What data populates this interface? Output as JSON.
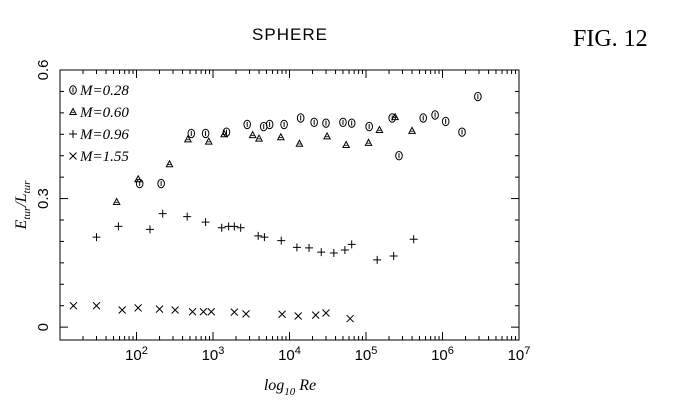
{
  "figure_label": "FIG. 12",
  "chart_data": {
    "type": "scatter",
    "title": "SPHERE",
    "xlabel": "log10 Re",
    "ylabel": "Etur/Ltur",
    "x_scale": "log",
    "xlim": [
      10,
      10000000
    ],
    "ylim": [
      -0.03,
      0.6
    ],
    "x_ticks": [
      {
        "value": 100,
        "base": "10",
        "exp": "2"
      },
      {
        "value": 1000,
        "base": "10",
        "exp": "3"
      },
      {
        "value": 10000,
        "base": "10",
        "exp": "4"
      },
      {
        "value": 100000,
        "base": "10",
        "exp": "5"
      },
      {
        "value": 1000000,
        "base": "10",
        "exp": "6"
      },
      {
        "value": 10000000,
        "base": "10",
        "exp": "7"
      }
    ],
    "y_ticks": [
      {
        "value": 0,
        "label": "0"
      },
      {
        "value": 0.3,
        "label": "0.3"
      },
      {
        "value": 0.6,
        "label": "0.6"
      }
    ],
    "grid": false,
    "legend_position": "top-left",
    "series": [
      {
        "name": "M=0.28",
        "marker": "circle",
        "points": [
          [
            110,
            0.335
          ],
          [
            210,
            0.335
          ],
          [
            520,
            0.452
          ],
          [
            800,
            0.452
          ],
          [
            1500,
            0.455
          ],
          [
            2800,
            0.473
          ],
          [
            4600,
            0.468
          ],
          [
            5500,
            0.473
          ],
          [
            8500,
            0.473
          ],
          [
            14000,
            0.488
          ],
          [
            21000,
            0.478
          ],
          [
            30000,
            0.476
          ],
          [
            50000,
            0.478
          ],
          [
            65000,
            0.476
          ],
          [
            110000,
            0.468
          ],
          [
            220000,
            0.488
          ],
          [
            270000,
            0.4
          ],
          [
            560000,
            0.488
          ],
          [
            800000,
            0.495
          ],
          [
            1100000,
            0.48
          ],
          [
            1800000,
            0.455
          ],
          [
            2900000,
            0.538
          ]
        ]
      },
      {
        "name": "M=0.60",
        "marker": "triangle",
        "points": [
          [
            55,
            0.292
          ],
          [
            105,
            0.345
          ],
          [
            270,
            0.38
          ],
          [
            470,
            0.438
          ],
          [
            880,
            0.433
          ],
          [
            1400,
            0.45
          ],
          [
            3300,
            0.448
          ],
          [
            4000,
            0.44
          ],
          [
            7700,
            0.443
          ],
          [
            13500,
            0.428
          ],
          [
            31000,
            0.445
          ],
          [
            55000,
            0.425
          ],
          [
            108000,
            0.43
          ],
          [
            150000,
            0.46
          ],
          [
            240000,
            0.49
          ],
          [
            400000,
            0.458
          ]
        ]
      },
      {
        "name": "M=0.96",
        "marker": "plus",
        "points": [
          [
            30,
            0.21
          ],
          [
            58,
            0.235
          ],
          [
            150,
            0.228
          ],
          [
            220,
            0.265
          ],
          [
            460,
            0.258
          ],
          [
            800,
            0.245
          ],
          [
            1300,
            0.232
          ],
          [
            1600,
            0.235
          ],
          [
            1900,
            0.235
          ],
          [
            2300,
            0.232
          ],
          [
            3900,
            0.213
          ],
          [
            4700,
            0.21
          ],
          [
            7800,
            0.202
          ],
          [
            12500,
            0.186
          ],
          [
            18000,
            0.185
          ],
          [
            26000,
            0.175
          ],
          [
            38000,
            0.173
          ],
          [
            53000,
            0.18
          ],
          [
            65000,
            0.193
          ],
          [
            140000,
            0.157
          ],
          [
            230000,
            0.166
          ],
          [
            420000,
            0.205
          ]
        ]
      },
      {
        "name": "M=1.55",
        "marker": "cross",
        "points": [
          [
            15,
            0.05
          ],
          [
            30,
            0.05
          ],
          [
            65,
            0.04
          ],
          [
            105,
            0.045
          ],
          [
            200,
            0.042
          ],
          [
            320,
            0.04
          ],
          [
            540,
            0.036
          ],
          [
            750,
            0.036
          ],
          [
            950,
            0.036
          ],
          [
            1900,
            0.035
          ],
          [
            2700,
            0.031
          ],
          [
            8000,
            0.03
          ],
          [
            13000,
            0.026
          ],
          [
            22000,
            0.028
          ],
          [
            30000,
            0.033
          ],
          [
            62000,
            0.02
          ]
        ]
      }
    ]
  }
}
